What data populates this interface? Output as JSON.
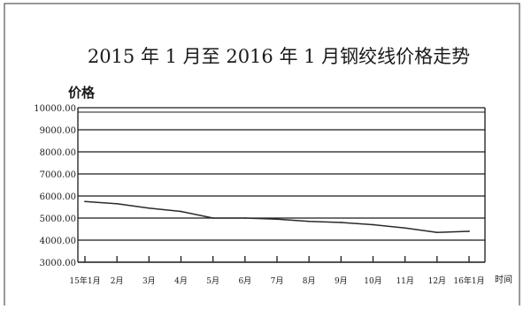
{
  "chart_data": {
    "type": "line",
    "title": "2015 年 1 月至 2016 年 1 月钢绞线价格走势",
    "ylabel": "价格",
    "xlabel": "时间",
    "ylim": [
      3000,
      10000
    ],
    "yticks": [
      "10000.00",
      "9000.00",
      "8000.00",
      "7000.00",
      "6000.00",
      "5000.00",
      "4000.00",
      "3000.00"
    ],
    "categories": [
      "15年1月",
      "2月",
      "3月",
      "4月",
      "5月",
      "6月",
      "7月",
      "8月",
      "9月",
      "10月",
      "11月",
      "12月",
      "16年1月"
    ],
    "series": [
      {
        "values": [
          5750,
          5650,
          5450,
          5300,
          5000,
          5000,
          4950,
          4850,
          4800,
          4700,
          4550,
          4350,
          4400
        ]
      }
    ],
    "grid": true,
    "colors": {
      "line": "#2a2a2a",
      "axis": "#1a1a1a",
      "frame": "#555555"
    }
  }
}
